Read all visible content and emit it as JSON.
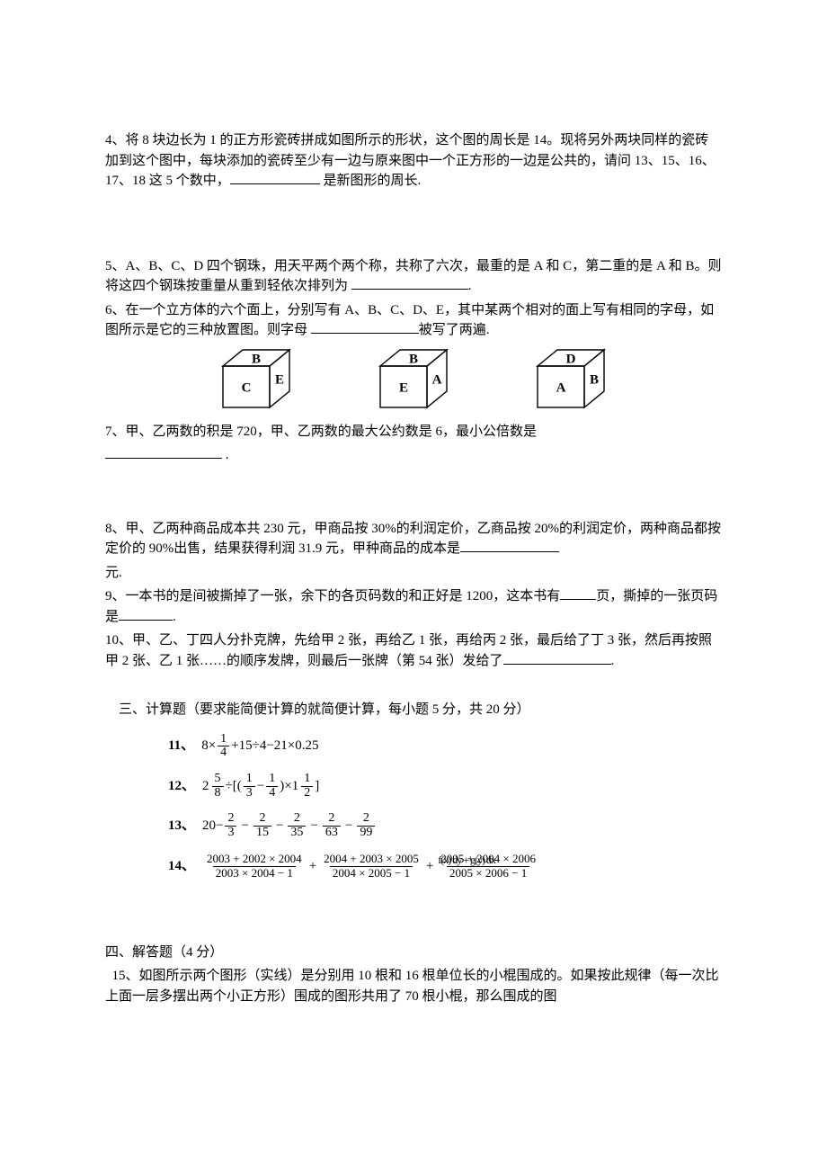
{
  "questions": {
    "q4": {
      "text_a": "4、将 8 块边长为 1 的正方形瓷砖拼成如图所示的形状，这个图的周长是 14。现将另外两块同样的瓷砖加到这个图中，每块添加的瓷砖至少有一边与原来图中一个正方形的一边是公共的，请问 13、15、16、17、18 这 5 个数中，",
      "text_b": " 是新图形的周长."
    },
    "q5": {
      "text_a": "5、A、B、C、D 四个钢珠，用天平两个两个称，共称了六次，最重的是 A 和 C，第二重的是 A 和 B。则将这四个钢珠按重量从重到轻依次排列为 ",
      "text_b": "."
    },
    "q6": {
      "text_a": "6、在一个立方体的六个面上，分别写有 A、B、C、D、E，其中某两个相对的面上写有相同的字母，如图所示是它的三种放置图。则字母 ",
      "text_b": "被写了两遍."
    },
    "q7": {
      "text_a": "7、甲、乙两数的积是 720，甲、乙两数的最大公约数是 6，最小公倍数是",
      "text_b": " ."
    },
    "q8": {
      "text_a": "8、甲、乙两种商品成本共 230 元，甲商品按 30%的利润定价，乙商品按 20%的利润定价，两种商品都按定价的 90%出售，结果获得利润 31.9 元，甲种商品的成本是",
      "text_b": "元."
    },
    "q9": {
      "text_a": "9、一本书的是间被撕掉了一张，余下的各页码数的和正好是 1200，这本书有",
      "text_b": "页，撕掉的一张页码是",
      "text_c": "."
    },
    "q10": {
      "text_a": "10、甲、乙、丁四人分扑克牌，先给甲 2 张，再给乙 1 张，再给丙 2 张，最后给了丁 3 张，然后再按照甲 2 张、乙 1 张……的顺序发牌，则最后一张牌（第 54 张）发给了",
      "text_b": "."
    }
  },
  "sections": {
    "calc_title": "三、计算题（要求能简便计算的就简便计算，每小题 5 分，共 20 分）",
    "answer_title": "四、解答题（4 分）"
  },
  "calc": {
    "c11_label": "11、",
    "c12_label": "12、",
    "c13_label": "13、",
    "c14_label": "14、",
    "c11": {
      "prefix": "8×",
      "frac1_num": "1",
      "frac1_den": "4",
      "mid": "+15÷4−21×0.25"
    },
    "c12": {
      "m1_whole": "2",
      "m1_num": "5",
      "m1_den": "8",
      "div": "÷[(",
      "f1_num": "1",
      "f1_den": "3",
      "minus": "−",
      "f2_num": "1",
      "f2_den": "4",
      "close": ")×",
      "m2_whole": "1",
      "m2_num": "1",
      "m2_den": "2",
      "end": "]"
    },
    "c13": {
      "start": "20−",
      "f1_num": "2",
      "f1_den": "3",
      "f2_num": "2",
      "f2_den": "15",
      "f3_num": "2",
      "f3_den": "35",
      "f4_num": "2",
      "f4_den": "63",
      "f5_num": "2",
      "f5_den": "99",
      "minus": "−"
    },
    "c14": {
      "f1_num": "2003 + 2002 × 2004",
      "f1_den": "2003 × 2004 − 1",
      "f2_num": "2004 + 2003 × 2005",
      "f2_den": "2004 × 2005 − 1",
      "f3_num_visible": "2005 + 2004 × 2006",
      "f3_num_overlay": "f(x) dy + g(y) dx",
      "f3_den": "2005 × 2006 − 1",
      "plus": "+"
    }
  },
  "q15": {
    "text": "  15、如图所示两个图形（实线）是分别用 10 根和 16 根单位长的小棍围成的。如果按此规律（每一次比上面一层多摆出两个小正方形）围成的图形共用了 70 根小棍，那么围成的图"
  },
  "cubes": [
    {
      "top": "B",
      "front": "C",
      "right": "E"
    },
    {
      "top": "B",
      "front": "E",
      "right": "A"
    },
    {
      "top": "D",
      "front": "A",
      "right": "B"
    }
  ],
  "cube_style": {
    "width": 90,
    "height": 72,
    "stroke": "#000000",
    "stroke_width": 1.4,
    "font_size": 15,
    "font_weight": "bold"
  }
}
